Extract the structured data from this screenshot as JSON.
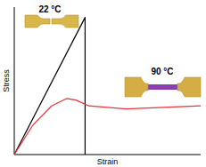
{
  "chart_data": {
    "type": "line",
    "x_label": "Strain",
    "y_label": "Stress",
    "xlim": [
      0,
      100
    ],
    "ylim": [
      0,
      100
    ],
    "tick_labels": false,
    "grid": false,
    "series": [
      {
        "name": "22 °C",
        "color": "#000000",
        "x": [
          0,
          38,
          38
        ],
        "values": [
          0,
          93,
          0
        ]
      },
      {
        "name": "90 °C",
        "color": "#e8323c",
        "x": [
          0,
          10,
          20,
          28,
          33,
          40,
          50,
          60,
          80,
          100
        ],
        "values": [
          0,
          20,
          33,
          38,
          37,
          33,
          32,
          31,
          32,
          33
        ]
      }
    ]
  }
}
